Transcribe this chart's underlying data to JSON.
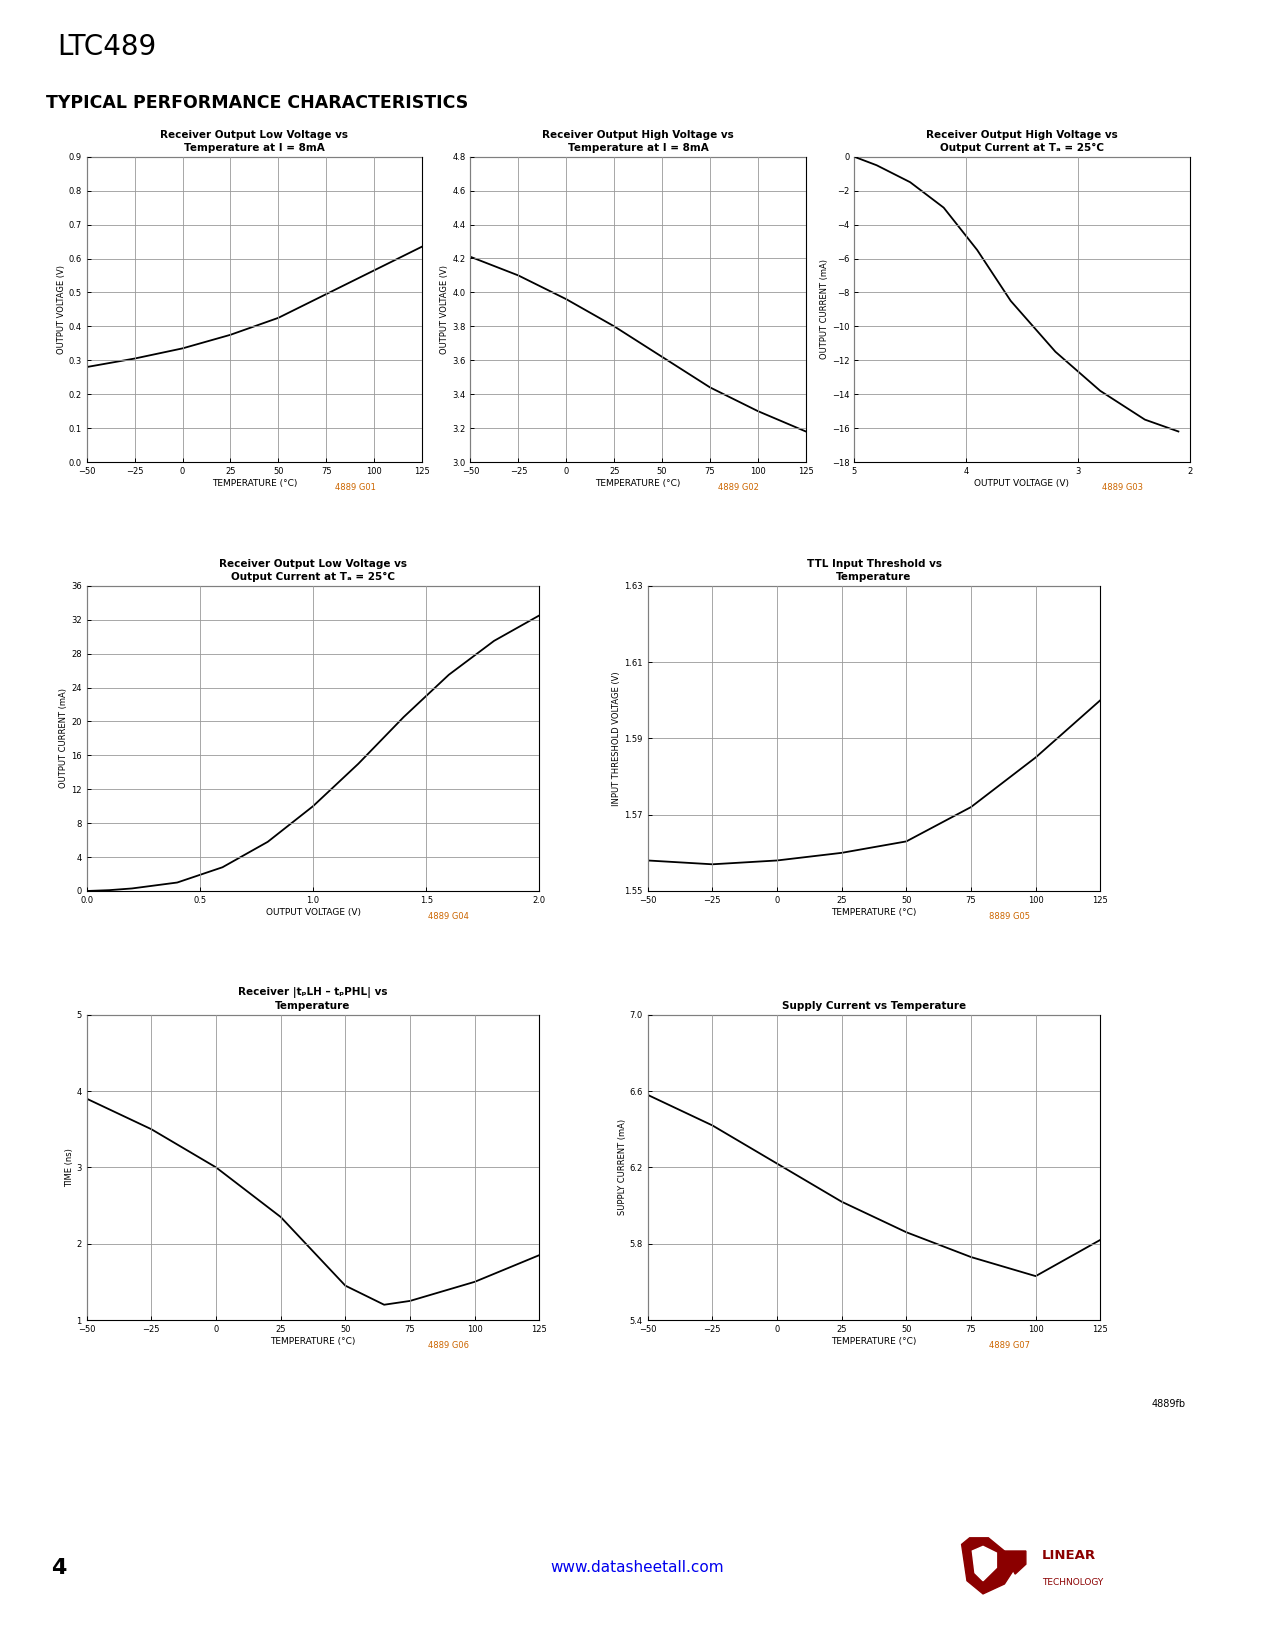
{
  "page_title": "LTC489",
  "section_title": "TYPICAL PERFORMANCE CHARACTERISTICS",
  "bg_color": "#ffffff",
  "grid_color": "#999999",
  "line_color": "#000000",
  "axis_label_color": "#000000",
  "tick_color": "#000000",
  "title_color": "#000000",
  "caption_color": "#cc6600",
  "plots": [
    {
      "title": "Receiver Output Low Voltage vs\nTemperature at I = 8mA",
      "xlabel": "TEMPERATURE (°C)",
      "ylabel": "OUTPUT VOLTAGE (V)",
      "xlim": [
        -50,
        125
      ],
      "ylim": [
        0,
        0.9
      ],
      "xticks": [
        -50,
        -25,
        0,
        25,
        50,
        75,
        100,
        125
      ],
      "yticks": [
        0,
        0.1,
        0.2,
        0.3,
        0.4,
        0.5,
        0.6,
        0.7,
        0.8,
        0.9
      ],
      "x": [
        -50,
        -25,
        0,
        25,
        50,
        75,
        100,
        125
      ],
      "y": [
        0.28,
        0.305,
        0.335,
        0.375,
        0.425,
        0.495,
        0.565,
        0.635
      ],
      "caption": "4889 G01"
    },
    {
      "title": "Receiver Output High Voltage vs\nTemperature at I = 8mA",
      "xlabel": "TEMPERATURE (°C)",
      "ylabel": "OUTPUT VOLTAGE (V)",
      "xlim": [
        -50,
        125
      ],
      "ylim": [
        3.0,
        4.8
      ],
      "xticks": [
        -50,
        -25,
        0,
        25,
        50,
        75,
        100,
        125
      ],
      "yticks": [
        3.0,
        3.2,
        3.4,
        3.6,
        3.8,
        4.0,
        4.2,
        4.4,
        4.6,
        4.8
      ],
      "x": [
        -50,
        -25,
        0,
        25,
        50,
        75,
        100,
        125
      ],
      "y": [
        4.21,
        4.1,
        3.96,
        3.8,
        3.62,
        3.44,
        3.3,
        3.18
      ],
      "caption": "4889 G02"
    },
    {
      "title": "Receiver Output High Voltage vs\nOutput Current at Tₐ = 25°C",
      "xlabel": "OUTPUT VOLTAGE (V)",
      "ylabel": "OUTPUT CURRENT (mA)",
      "xlim": [
        5,
        2
      ],
      "ylim": [
        -18,
        0
      ],
      "xticks": [
        5,
        4,
        3,
        2
      ],
      "yticks": [
        -18,
        -16,
        -14,
        -12,
        -10,
        -8,
        -6,
        -4,
        -2,
        0
      ],
      "x": [
        5.0,
        4.8,
        4.5,
        4.2,
        3.9,
        3.6,
        3.2,
        2.8,
        2.4,
        2.1
      ],
      "y": [
        0,
        -0.5,
        -1.5,
        -3.0,
        -5.5,
        -8.5,
        -11.5,
        -13.8,
        -15.5,
        -16.2
      ],
      "caption": "4889 G03"
    },
    {
      "title": "Receiver Output Low Voltage vs\nOutput Current at Tₐ = 25°C",
      "xlabel": "OUTPUT VOLTAGE (V)",
      "ylabel": "OUTPUT CURRENT (mA)",
      "xlim": [
        0,
        2.0
      ],
      "ylim": [
        0,
        36
      ],
      "xticks": [
        0,
        0.5,
        1.0,
        1.5,
        2.0
      ],
      "yticks": [
        0,
        4,
        8,
        12,
        16,
        20,
        24,
        28,
        32,
        36
      ],
      "x": [
        0.0,
        0.1,
        0.2,
        0.4,
        0.6,
        0.8,
        1.0,
        1.2,
        1.4,
        1.6,
        1.8,
        2.0
      ],
      "y": [
        0,
        0.1,
        0.3,
        1.0,
        2.8,
        5.8,
        10.0,
        15.0,
        20.5,
        25.5,
        29.5,
        32.5
      ],
      "caption": "4889 G04"
    },
    {
      "title": "TTL Input Threshold vs\nTemperature",
      "xlabel": "TEMPERATURE (°C)",
      "ylabel": "INPUT THRESHOLD VOLTAGE (V)",
      "xlim": [
        -50,
        125
      ],
      "ylim": [
        1.55,
        1.63
      ],
      "xticks": [
        -50,
        -25,
        0,
        25,
        50,
        75,
        100,
        125
      ],
      "yticks": [
        1.55,
        1.57,
        1.59,
        1.61,
        1.63
      ],
      "x": [
        -50,
        -25,
        0,
        25,
        50,
        75,
        100,
        125
      ],
      "y": [
        1.558,
        1.557,
        1.558,
        1.56,
        1.563,
        1.572,
        1.585,
        1.6
      ],
      "caption": "8889 G05"
    },
    {
      "title": "Receiver |tₚLH – tₚPHL| vs\nTemperature",
      "xlabel": "TEMPERATURE (°C)",
      "ylabel": "TIME (ns)",
      "xlim": [
        -50,
        125
      ],
      "ylim": [
        1,
        5
      ],
      "xticks": [
        -50,
        -25,
        0,
        25,
        50,
        75,
        100,
        125
      ],
      "yticks": [
        1,
        2,
        3,
        4,
        5
      ],
      "x": [
        -50,
        -25,
        0,
        25,
        50,
        65,
        75,
        100,
        125
      ],
      "y": [
        3.9,
        3.5,
        3.0,
        2.35,
        1.45,
        1.2,
        1.25,
        1.5,
        1.85
      ],
      "caption": "4889 G06"
    },
    {
      "title": "Supply Current vs Temperature",
      "xlabel": "TEMPERATURE (°C)",
      "ylabel": "SUPPLY CURRENT (mA)",
      "xlim": [
        -50,
        125
      ],
      "ylim": [
        5.4,
        7.0
      ],
      "xticks": [
        -50,
        -25,
        0,
        25,
        50,
        75,
        100,
        125
      ],
      "yticks": [
        5.4,
        5.8,
        6.2,
        6.6,
        7.0
      ],
      "x": [
        -50,
        -25,
        0,
        25,
        50,
        75,
        100,
        125
      ],
      "y": [
        6.58,
        6.42,
        6.22,
        6.02,
        5.86,
        5.73,
        5.63,
        5.82
      ],
      "caption": "4889 G07"
    }
  ],
  "footer_url": "www.datasheetall.com",
  "page_number": "4",
  "doc_id": "4889fb"
}
